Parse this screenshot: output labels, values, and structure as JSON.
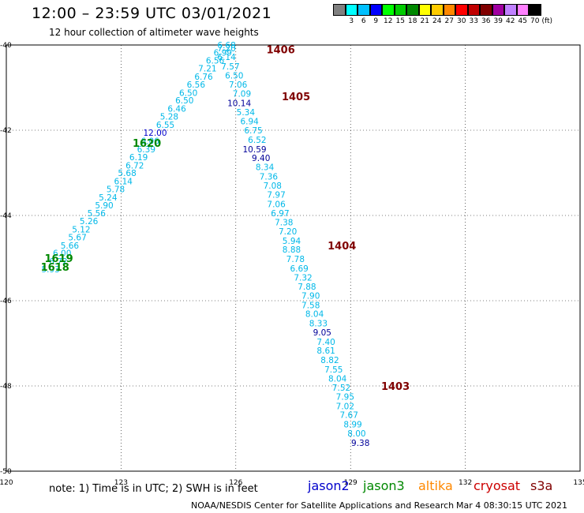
{
  "title": "12:00 – 23:59 UTC 03/01/2021",
  "subtitle": "12 hour collection of altimeter wave heights",
  "color_scale": {
    "unit": "(ft)",
    "colors": [
      "#808080",
      "#00ffff",
      "#00c0ff",
      "#0000ff",
      "#00ff00",
      "#00cc00",
      "#008800",
      "#ffff00",
      "#ffcc00",
      "#ff8800",
      "#ff0000",
      "#c00000",
      "#800000",
      "#a000a0",
      "#c080ff",
      "#ff80ff",
      "#000000"
    ],
    "labels": [
      "3",
      "6",
      "9",
      "12",
      "15",
      "18",
      "21",
      "24",
      "27",
      "30",
      "33",
      "36",
      "39",
      "42",
      "45",
      "70"
    ]
  },
  "note": "note:  1) Time is in UTC;  2) SWH is in feet",
  "satellites": [
    {
      "name": "jason2",
      "color": "#0000cc"
    },
    {
      "name": "jason3",
      "color": "#008800"
    },
    {
      "name": "altika",
      "color": "#ff8800"
    },
    {
      "name": "cryosat",
      "color": "#cc0000"
    },
    {
      "name": "s3a",
      "color": "#800000"
    }
  ],
  "credit": "NOAA/NESDIS Center for Satellite Applications and Research",
  "credit_time": "Mar  4 08:30:15 UTC 2021",
  "chart_data": {
    "type": "scatter",
    "x_ticks": [
      "120",
      "123",
      "126",
      "129",
      "132",
      "135"
    ],
    "y_ticks": [
      "-40",
      "-42",
      "-44",
      "-46",
      "-48",
      "-50"
    ],
    "xlim": [
      120,
      135
    ],
    "ylim": [
      -50,
      -40
    ],
    "grid": true,
    "tracks": [
      {
        "color": "#008800",
        "pass_labels": [
          {
            "text": "1620",
            "x": 123.3,
            "y": -42.3
          },
          {
            "text": "1619",
            "x": 121.0,
            "y": -45.0
          },
          {
            "text": "1618",
            "x": 120.9,
            "y": -45.2
          }
        ],
        "points": [
          {
            "lon": 121.4,
            "lat": -45.26,
            "swh": "5.93"
          },
          {
            "lon": 121.6,
            "lat": -45.07,
            "swh": "6.72"
          },
          {
            "lon": 121.7,
            "lat": -44.88,
            "swh": "6.00"
          },
          {
            "lon": 121.9,
            "lat": -44.7,
            "swh": "5.66"
          },
          {
            "lon": 122.1,
            "lat": -44.51,
            "swh": "5.67"
          },
          {
            "lon": 122.2,
            "lat": -44.32,
            "swh": "5.12"
          },
          {
            "lon": 122.4,
            "lat": -44.13,
            "swh": "5.26"
          },
          {
            "lon": 122.6,
            "lat": -43.94,
            "swh": "5.56"
          },
          {
            "lon": 122.8,
            "lat": -43.76,
            "swh": "5.90"
          },
          {
            "lon": 122.9,
            "lat": -43.57,
            "swh": "5.24"
          },
          {
            "lon": 123.1,
            "lat": -43.38,
            "swh": "5.78"
          },
          {
            "lon": 123.3,
            "lat": -43.19,
            "swh": "6.14"
          },
          {
            "lon": 123.4,
            "lat": -43.0,
            "swh": "5.68"
          },
          {
            "lon": 123.6,
            "lat": -42.82,
            "swh": "6.72"
          },
          {
            "lon": 123.7,
            "lat": -42.63,
            "swh": "6.19"
          },
          {
            "lon": 123.9,
            "lat": -42.44,
            "swh": "6.39"
          },
          {
            "lon": 124.0,
            "lat": -42.25,
            "swh": "6.06"
          },
          {
            "lon": 124.2,
            "lat": -42.06,
            "swh": "12.00"
          },
          {
            "lon": 124.4,
            "lat": -41.87,
            "swh": "6.55"
          },
          {
            "lon": 124.5,
            "lat": -41.68,
            "swh": "5.28"
          },
          {
            "lon": 124.7,
            "lat": -41.49,
            "swh": "6.46"
          },
          {
            "lon": 124.9,
            "lat": -41.3,
            "swh": "6.50"
          },
          {
            "lon": 125.0,
            "lat": -41.12,
            "swh": "6.50"
          },
          {
            "lon": 125.2,
            "lat": -40.93,
            "swh": "6.56"
          },
          {
            "lon": 125.4,
            "lat": -40.74,
            "swh": "6.76"
          },
          {
            "lon": 125.5,
            "lat": -40.55,
            "swh": "7.21"
          },
          {
            "lon": 125.7,
            "lat": -40.36,
            "swh": "6.56"
          },
          {
            "lon": 125.9,
            "lat": -40.18,
            "swh": "6.99"
          },
          {
            "lon": 126.0,
            "lat": -40.0,
            "swh": "6.68"
          }
        ]
      },
      {
        "color": "#800000",
        "pass_labels": [
          {
            "text": "1406",
            "x": 126.8,
            "y": -40.1
          },
          {
            "text": "1405",
            "x": 127.2,
            "y": -41.2
          },
          {
            "text": "1404",
            "x": 128.4,
            "y": -44.7
          },
          {
            "text": "1403",
            "x": 129.8,
            "y": -48.0
          }
        ],
        "points": [
          {
            "lon": 126.0,
            "lat": -40.07,
            "swh": "7.20"
          },
          {
            "lon": 126.0,
            "lat": -40.28,
            "swh": "6.14"
          },
          {
            "lon": 126.1,
            "lat": -40.5,
            "swh": "7.57"
          },
          {
            "lon": 126.2,
            "lat": -40.71,
            "swh": "6.50"
          },
          {
            "lon": 126.3,
            "lat": -40.93,
            "swh": "7.06"
          },
          {
            "lon": 126.4,
            "lat": -41.14,
            "swh": "7.09"
          },
          {
            "lon": 126.4,
            "lat": -41.36,
            "swh": "10.14"
          },
          {
            "lon": 126.5,
            "lat": -41.57,
            "swh": "5.34"
          },
          {
            "lon": 126.6,
            "lat": -41.79,
            "swh": "6.94"
          },
          {
            "lon": 126.7,
            "lat": -42.0,
            "swh": "6.75"
          },
          {
            "lon": 126.8,
            "lat": -42.22,
            "swh": "6.52"
          },
          {
            "lon": 126.8,
            "lat": -42.44,
            "swh": "10.59"
          },
          {
            "lon": 126.9,
            "lat": -42.65,
            "swh": "9.40"
          },
          {
            "lon": 127.0,
            "lat": -42.86,
            "swh": "8.34"
          },
          {
            "lon": 127.1,
            "lat": -43.08,
            "swh": "7.36"
          },
          {
            "lon": 127.2,
            "lat": -43.3,
            "swh": "7.08"
          },
          {
            "lon": 127.3,
            "lat": -43.51,
            "swh": "7.97"
          },
          {
            "lon": 127.3,
            "lat": -43.73,
            "swh": "7.06"
          },
          {
            "lon": 127.4,
            "lat": -43.94,
            "swh": "6.97"
          },
          {
            "lon": 127.5,
            "lat": -44.16,
            "swh": "7.38"
          },
          {
            "lon": 127.6,
            "lat": -44.37,
            "swh": "7.20"
          },
          {
            "lon": 127.7,
            "lat": -44.59,
            "swh": "5.94"
          },
          {
            "lon": 127.7,
            "lat": -44.8,
            "swh": "8.88"
          },
          {
            "lon": 127.8,
            "lat": -45.02,
            "swh": "7.78"
          },
          {
            "lon": 127.9,
            "lat": -45.24,
            "swh": "6.69"
          },
          {
            "lon": 128.0,
            "lat": -45.45,
            "swh": "7.32"
          },
          {
            "lon": 128.1,
            "lat": -45.67,
            "swh": "7.88"
          },
          {
            "lon": 128.2,
            "lat": -45.88,
            "swh": "7.90"
          },
          {
            "lon": 128.2,
            "lat": -46.1,
            "swh": "7.58"
          },
          {
            "lon": 128.3,
            "lat": -46.31,
            "swh": "8.04"
          },
          {
            "lon": 128.4,
            "lat": -46.53,
            "swh": "8.33"
          },
          {
            "lon": 128.5,
            "lat": -46.74,
            "swh": "9.05"
          },
          {
            "lon": 128.6,
            "lat": -46.96,
            "swh": "7.40"
          },
          {
            "lon": 128.6,
            "lat": -47.17,
            "swh": "8.61"
          },
          {
            "lon": 128.7,
            "lat": -47.39,
            "swh": "8.82"
          },
          {
            "lon": 128.8,
            "lat": -47.61,
            "swh": "7.55"
          },
          {
            "lon": 128.9,
            "lat": -47.82,
            "swh": "8.04"
          },
          {
            "lon": 129.0,
            "lat": -48.04,
            "swh": "7.52"
          },
          {
            "lon": 129.1,
            "lat": -48.25,
            "swh": "7.95"
          },
          {
            "lon": 129.1,
            "lat": -48.47,
            "swh": "7.02"
          },
          {
            "lon": 129.2,
            "lat": -48.68,
            "swh": "7.67"
          },
          {
            "lon": 129.3,
            "lat": -48.9,
            "swh": "8.99"
          },
          {
            "lon": 129.4,
            "lat": -49.11,
            "swh": "8.00"
          },
          {
            "lon": 129.5,
            "lat": -49.33,
            "swh": "9.38"
          }
        ]
      }
    ]
  }
}
